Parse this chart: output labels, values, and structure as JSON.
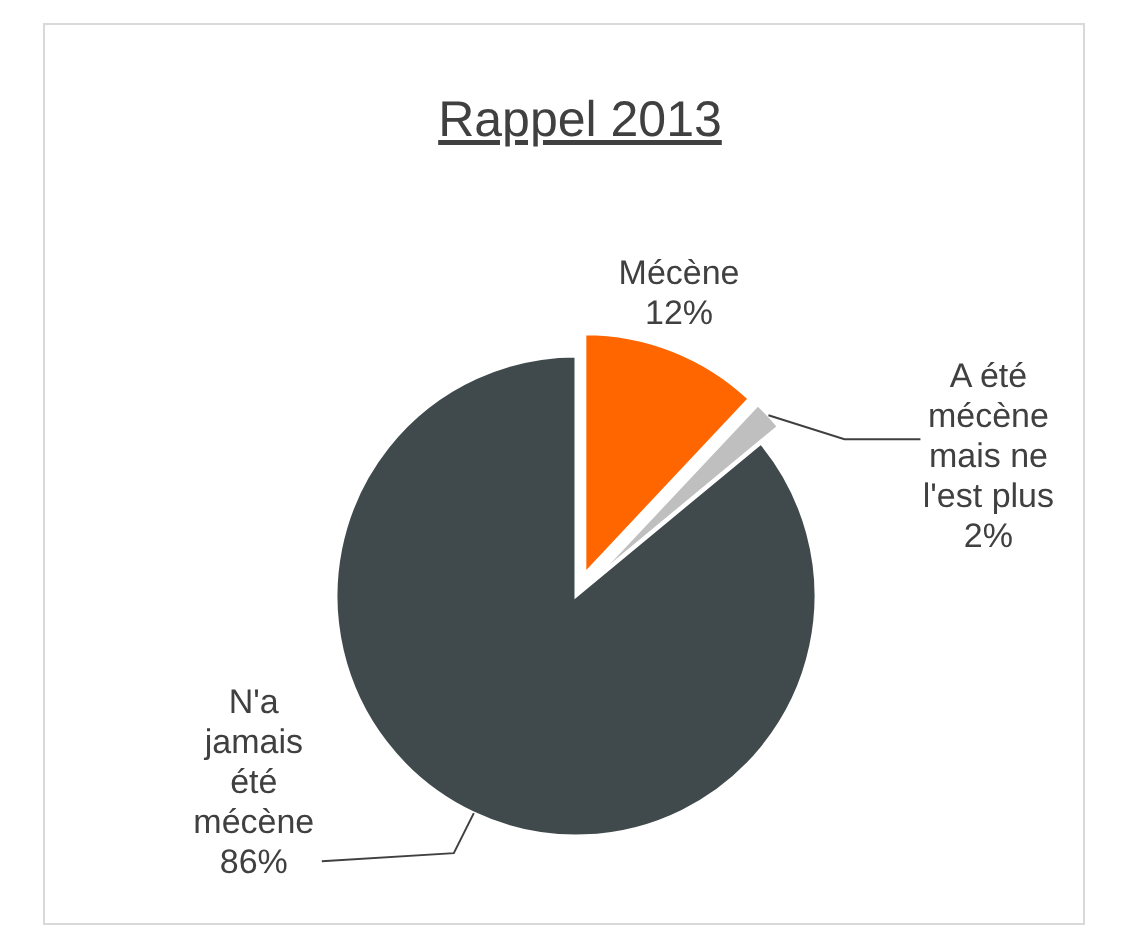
{
  "chart_data": {
    "type": "pie",
    "title": "Rappel 2013",
    "categories": [
      "Mécène",
      "A été mécène mais ne l'est plus",
      "N'a jamais été mécène"
    ],
    "values": [
      12,
      2,
      86
    ],
    "colors": [
      "#ff6600",
      "#bfbfbf",
      "#404a4c"
    ],
    "value_labels": [
      "12%",
      "2%",
      "86%"
    ]
  }
}
